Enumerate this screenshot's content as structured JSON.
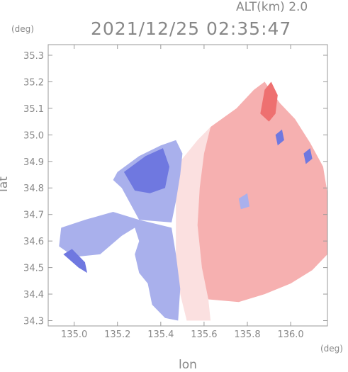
{
  "header": {
    "altitude_label": "ALT(km) 2.0",
    "timestamp": "2021/12/25 02:35:47",
    "unit_y": "(deg)",
    "unit_x": "(deg)"
  },
  "chart_data": {
    "type": "heatmap",
    "title": "",
    "xlabel": "lon",
    "ylabel": "lat",
    "xlim": [
      134.88,
      136.17
    ],
    "ylim": [
      34.28,
      35.34
    ],
    "x_ticks": [
      "135.0",
      "135.2",
      "135.4",
      "135.6",
      "135.8",
      "136.0"
    ],
    "y_ticks": [
      "34.3",
      "34.4",
      "34.5",
      "34.6",
      "34.7",
      "34.8",
      "34.9",
      "35.0",
      "35.1",
      "35.2",
      "35.3"
    ],
    "grid": false,
    "colors": {
      "toward_light": "#d9dcf6",
      "toward_mid": "#a9b0ec",
      "toward_strong": "#6f78e0",
      "away_light": "#fbe0e0",
      "away_mid": "#f6b0b0",
      "away_strong": "#ee7070",
      "axis": "#9a9a9a",
      "text": "#888888"
    },
    "echo_regions": [
      {
        "name": "northeast-away",
        "color": "away_mid",
        "polygon": [
          [
            135.63,
            35.03
          ],
          [
            135.75,
            35.1
          ],
          [
            135.83,
            35.17
          ],
          [
            135.88,
            35.2
          ],
          [
            135.95,
            35.12
          ],
          [
            136.02,
            35.06
          ],
          [
            136.09,
            34.97
          ],
          [
            136.15,
            34.88
          ],
          [
            136.17,
            34.78
          ],
          [
            136.17,
            34.55
          ],
          [
            136.1,
            34.49
          ],
          [
            136.0,
            34.44
          ],
          [
            135.88,
            34.4
          ],
          [
            135.76,
            34.37
          ],
          [
            135.62,
            34.38
          ],
          [
            135.57,
            34.5
          ],
          [
            135.56,
            34.68
          ],
          [
            135.58,
            34.84
          ],
          [
            135.6,
            34.96
          ]
        ]
      },
      {
        "name": "north-away-plume",
        "color": "away_strong",
        "polygon": [
          [
            135.86,
            35.08
          ],
          [
            135.88,
            35.17
          ],
          [
            135.91,
            35.2
          ],
          [
            135.94,
            35.15
          ],
          [
            135.93,
            35.08
          ],
          [
            135.9,
            35.05
          ]
        ]
      },
      {
        "name": "center-away-light",
        "color": "away_light",
        "polygon": [
          [
            135.49,
            34.9
          ],
          [
            135.57,
            34.98
          ],
          [
            135.63,
            35.03
          ],
          [
            135.6,
            34.93
          ],
          [
            135.58,
            34.8
          ],
          [
            135.57,
            34.66
          ],
          [
            135.59,
            34.5
          ],
          [
            135.62,
            34.38
          ],
          [
            135.63,
            34.3
          ],
          [
            135.52,
            34.3
          ],
          [
            135.49,
            34.4
          ],
          [
            135.47,
            34.55
          ],
          [
            135.47,
            34.7
          ],
          [
            135.47,
            34.83
          ]
        ]
      },
      {
        "name": "west-toward",
        "color": "toward_mid",
        "polygon": [
          [
            135.2,
            34.86
          ],
          [
            135.3,
            34.92
          ],
          [
            135.4,
            34.96
          ],
          [
            135.47,
            34.98
          ],
          [
            135.5,
            34.93
          ],
          [
            135.49,
            34.85
          ],
          [
            135.47,
            34.75
          ],
          [
            135.45,
            34.67
          ],
          [
            135.3,
            34.68
          ],
          [
            135.18,
            34.71
          ],
          [
            135.05,
            34.68
          ],
          [
            134.94,
            34.65
          ],
          [
            134.93,
            34.58
          ],
          [
            135.0,
            34.54
          ],
          [
            135.12,
            34.55
          ],
          [
            135.22,
            34.62
          ],
          [
            135.28,
            34.65
          ],
          [
            135.3,
            34.6
          ],
          [
            135.28,
            34.55
          ],
          [
            135.3,
            34.48
          ],
          [
            135.34,
            34.44
          ],
          [
            135.36,
            34.36
          ],
          [
            135.42,
            34.31
          ],
          [
            135.48,
            34.3
          ],
          [
            135.49,
            34.42
          ],
          [
            135.47,
            34.55
          ],
          [
            135.45,
            34.65
          ],
          [
            135.3,
            34.68
          ],
          [
            135.22,
            34.8
          ],
          [
            135.18,
            34.83
          ]
        ]
      },
      {
        "name": "west-toward-core",
        "color": "toward_strong",
        "polygon": [
          [
            135.23,
            34.86
          ],
          [
            135.33,
            34.92
          ],
          [
            135.41,
            34.95
          ],
          [
            135.44,
            34.88
          ],
          [
            135.42,
            34.8
          ],
          [
            135.35,
            34.78
          ],
          [
            135.28,
            34.79
          ]
        ]
      },
      {
        "name": "southwest-toward-strip",
        "color": "toward_strong",
        "polygon": [
          [
            134.95,
            34.55
          ],
          [
            135.02,
            34.5
          ],
          [
            135.06,
            34.48
          ],
          [
            135.05,
            34.52
          ],
          [
            134.99,
            34.57
          ]
        ]
      },
      {
        "name": "small-toward-cell-north",
        "color": "toward_strong",
        "polygon": [
          [
            135.93,
            35.0
          ],
          [
            135.96,
            35.02
          ],
          [
            135.97,
            34.98
          ],
          [
            135.94,
            34.96
          ]
        ]
      },
      {
        "name": "small-toward-cell-east",
        "color": "toward_strong",
        "polygon": [
          [
            136.06,
            34.93
          ],
          [
            136.09,
            34.95
          ],
          [
            136.1,
            34.91
          ],
          [
            136.07,
            34.89
          ]
        ]
      },
      {
        "name": "small-toward-cell-center",
        "color": "toward_mid",
        "polygon": [
          [
            135.76,
            34.76
          ],
          [
            135.8,
            34.78
          ],
          [
            135.81,
            34.73
          ],
          [
            135.77,
            34.72
          ]
        ]
      }
    ]
  }
}
